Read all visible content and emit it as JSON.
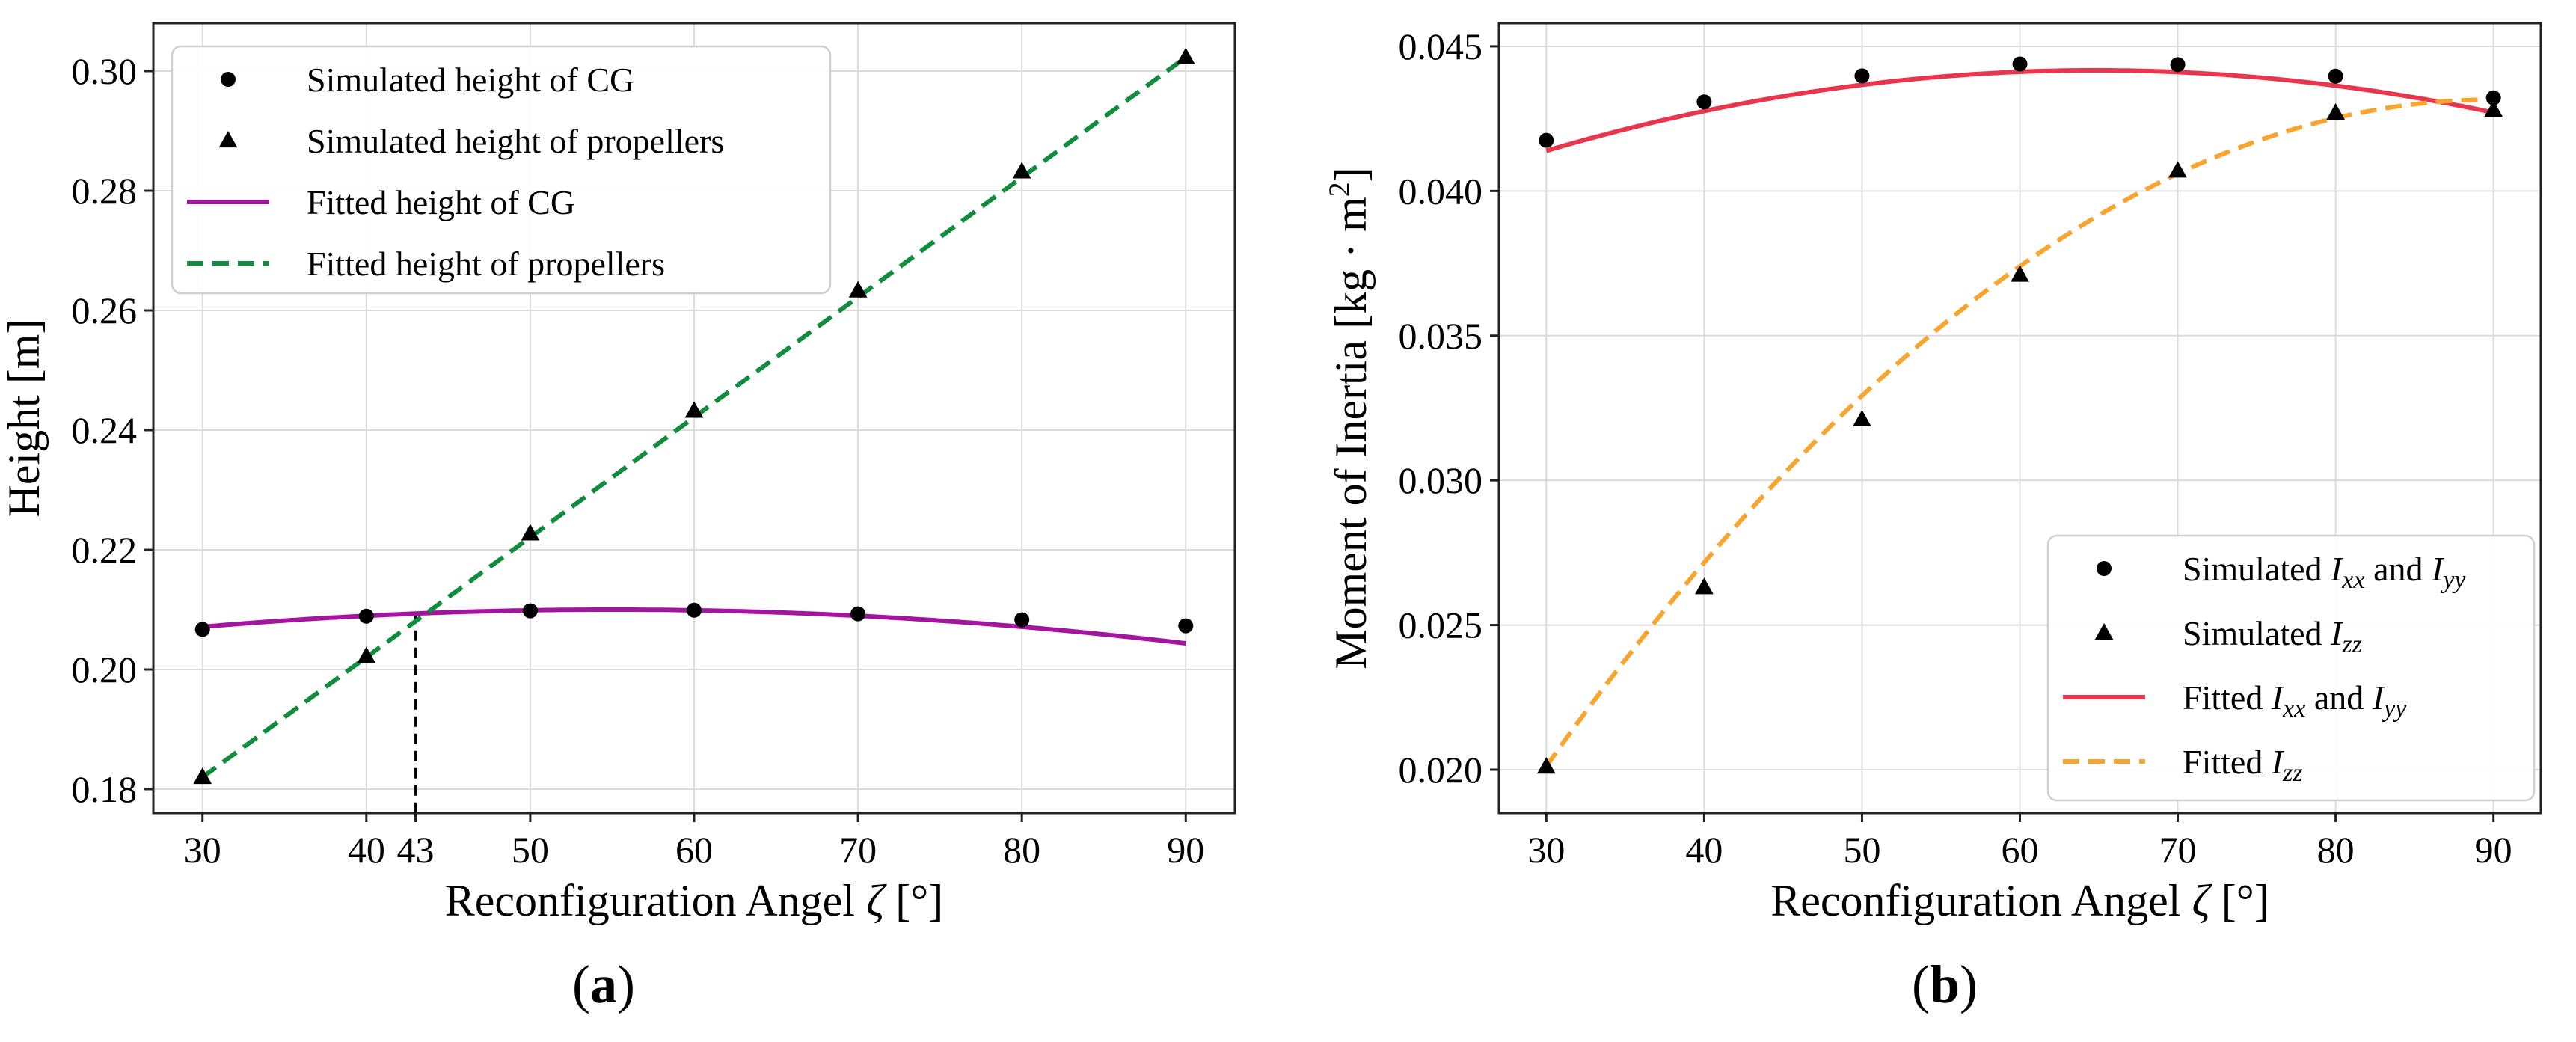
{
  "chart_data": [
    {
      "type": "line",
      "panel_label": "(a)",
      "xlabel": "Reconfiguration Angel ζ [°]",
      "xlabel_parts": {
        "pre": "Reconfiguration Angel ",
        "var": "ζ",
        "post": " [°]"
      },
      "ylabel": "Height [m]",
      "xlim": [
        27,
        93
      ],
      "ylim": [
        0.176,
        0.308
      ],
      "xticks": [
        30,
        40,
        43,
        50,
        60,
        70,
        80,
        90
      ],
      "xtick_labels": [
        "30",
        "40",
        "43",
        "50",
        "60",
        "70",
        "80",
        "90"
      ],
      "yticks": [
        0.18,
        0.2,
        0.22,
        0.24,
        0.26,
        0.28,
        0.3
      ],
      "ytick_labels": [
        "0.18",
        "0.20",
        "0.22",
        "0.24",
        "0.26",
        "0.28",
        "0.30"
      ],
      "grid": true,
      "legend_position": "top-left",
      "x": [
        30,
        40,
        50,
        60,
        70,
        80,
        90
      ],
      "series": [
        {
          "name": "Simulated height of CG",
          "kind": "scatter",
          "marker": "circle",
          "color": "#000000",
          "values": [
            0.2067,
            0.2089,
            0.2098,
            0.2099,
            0.2093,
            0.2083,
            0.2073
          ]
        },
        {
          "name": "Simulated height of propellers",
          "kind": "scatter",
          "marker": "triangle",
          "color": "#000000",
          "values": [
            0.182,
            0.2022,
            0.2227,
            0.2432,
            0.2633,
            0.2832,
            0.3023
          ]
        },
        {
          "name": "Fitted height of CG",
          "kind": "line",
          "style": "solid",
          "color": "#a3149f",
          "quadratic": [
            -4.6e-06,
            0.000506,
            0.19609
          ]
        },
        {
          "name": "Fitted height of propellers",
          "kind": "line",
          "style": "dashed",
          "color": "#0f8c3c",
          "linear": [
            0.002005,
            0.12185
          ]
        }
      ],
      "annotations": [
        {
          "kind": "vertical-dashed-line",
          "x": 43,
          "y_top": 0.2094
        }
      ]
    },
    {
      "type": "line",
      "panel_label": "(b)",
      "xlabel": "Reconfiguration Angel ζ [°]",
      "xlabel_parts": {
        "pre": "Reconfiguration Angel ",
        "var": "ζ",
        "post": " [°]"
      },
      "ylabel": "Moment of Inertia [kg · m²]",
      "ylabel_parts": {
        "pre": "Moment of Inertia [kg · m",
        "sup": "2",
        "post": "]"
      },
      "xlim": [
        27,
        93
      ],
      "ylim": [
        0.0185,
        0.0458
      ],
      "xticks": [
        30,
        40,
        50,
        60,
        70,
        80,
        90
      ],
      "xtick_labels": [
        "30",
        "40",
        "50",
        "60",
        "70",
        "80",
        "90"
      ],
      "yticks": [
        0.02,
        0.025,
        0.03,
        0.035,
        0.04,
        0.045
      ],
      "ytick_labels": [
        "0.020",
        "0.025",
        "0.030",
        "0.035",
        "0.040",
        "0.045"
      ],
      "grid": true,
      "legend_position": "bottom-right",
      "x": [
        30,
        40,
        50,
        60,
        70,
        80,
        90
      ],
      "series": [
        {
          "name": "Simulated Ixx and Iyy",
          "kind": "scatter",
          "marker": "circle",
          "color": "#000000",
          "legend_parts": [
            "Simulated ",
            "I|xx",
            " and ",
            "I|yy"
          ],
          "values": [
            0.04175,
            0.04308,
            0.04398,
            0.04439,
            0.04437,
            0.04397,
            0.04322
          ]
        },
        {
          "name": "Simulated Izz",
          "kind": "scatter",
          "marker": "triangle",
          "color": "#000000",
          "legend_parts": [
            "Simulated ",
            "I|zz"
          ],
          "values": [
            0.0201,
            0.0263,
            0.0321,
            0.0371,
            0.0407,
            0.0427,
            0.0428
          ]
        },
        {
          "name": "Fitted Ixx and Iyy",
          "kind": "line",
          "style": "solid",
          "color": "#e8364e",
          "legend_parts": [
            "Fitted ",
            "I|xx",
            " and ",
            "I|yy"
          ],
          "quadratic": [
            -2.3e-06,
            0.000298,
            0.03452
          ]
        },
        {
          "name": "Fitted Izz",
          "kind": "line",
          "style": "dashed",
          "color": "#f7a52e",
          "legend_parts": [
            "Fitted ",
            "I|zz"
          ],
          "quadratic": [
            -6.4e-06,
            0.001152,
            -0.00868
          ]
        }
      ]
    }
  ]
}
